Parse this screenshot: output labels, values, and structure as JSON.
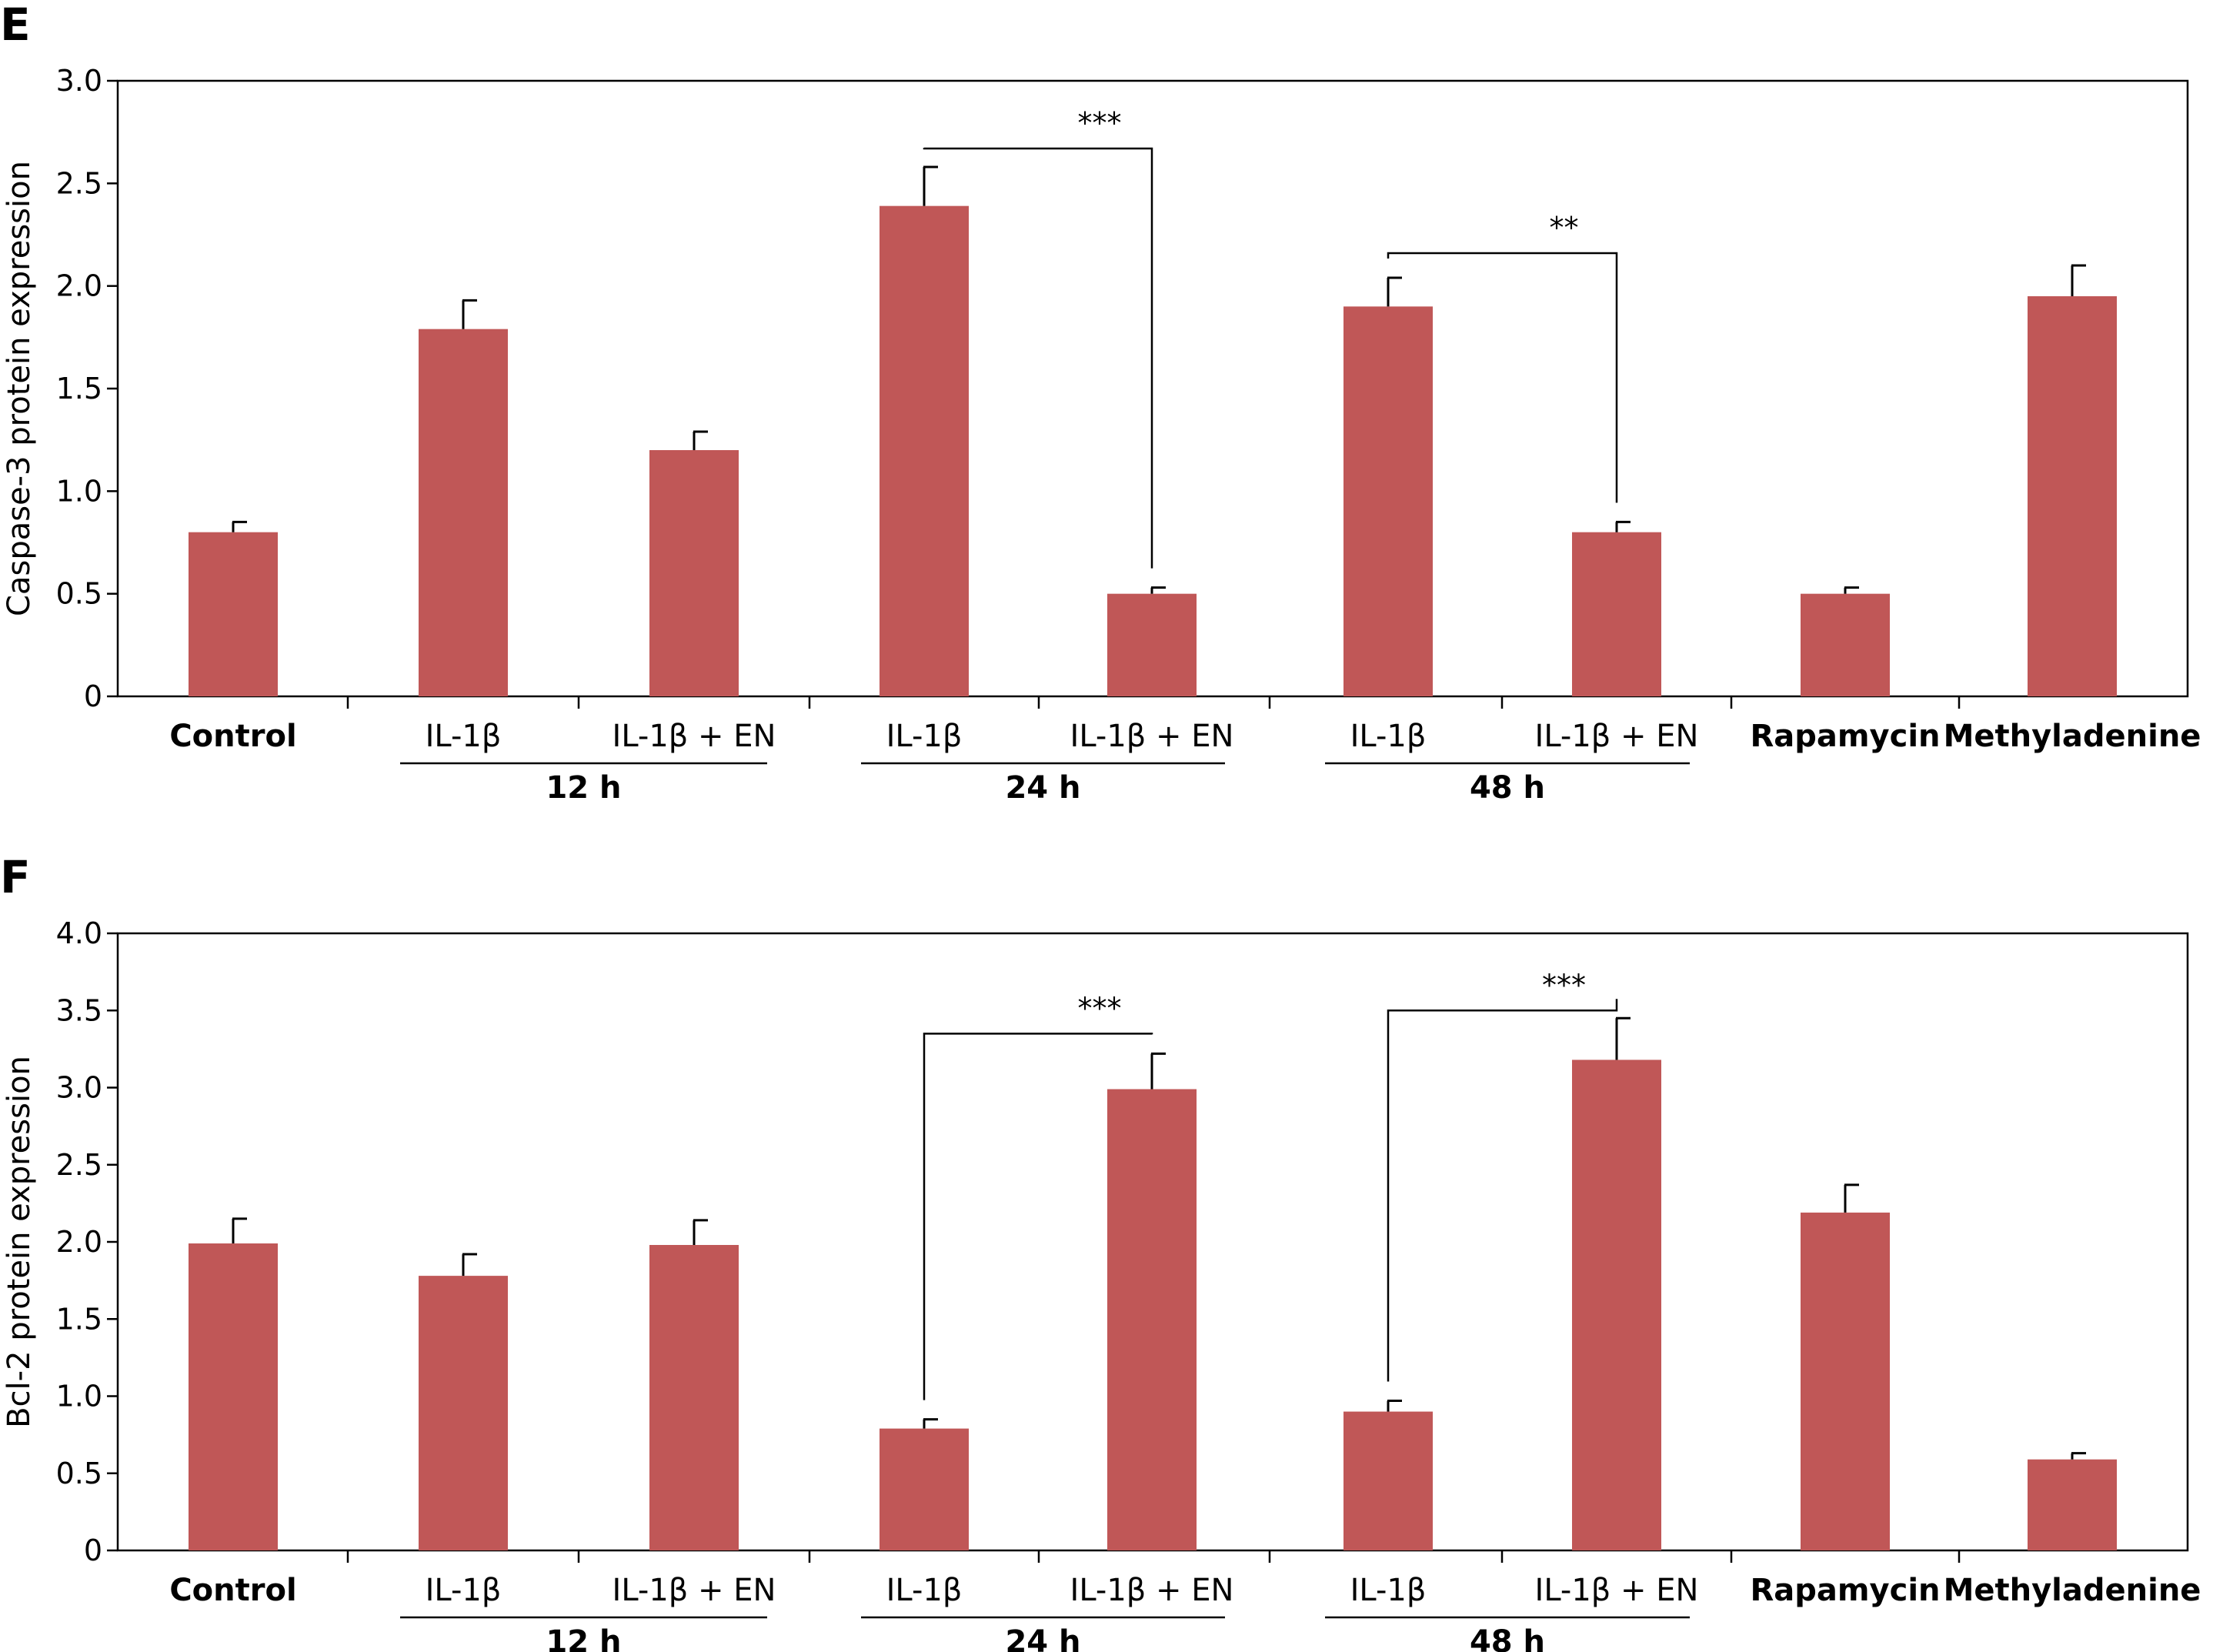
{
  "chart_data": [
    {
      "panel": "E",
      "type": "bar",
      "ylabel": "Caspase-3 protein expression",
      "ylim": [
        0,
        3.0
      ],
      "yticks": [
        "0",
        "0.5",
        "1.0",
        "1.5",
        "2.0",
        "2.5",
        "3.0"
      ],
      "categories": [
        "Control",
        "IL-1β",
        "IL-1β + EN",
        "IL-1β",
        "IL-1β + EN",
        "IL-1β",
        "IL-1β + EN",
        "Rapamycin",
        "Methyladenine"
      ],
      "bold_categories": [
        0,
        7,
        8
      ],
      "values": [
        0.8,
        1.79,
        1.2,
        2.39,
        0.5,
        1.9,
        0.8,
        0.5,
        1.95
      ],
      "errors": [
        0.05,
        0.14,
        0.09,
        0.19,
        0.03,
        0.14,
        0.05,
        0.03,
        0.15
      ],
      "groups": [
        {
          "label": "12 h",
          "from": 1,
          "to": 2
        },
        {
          "label": "24 h",
          "from": 3,
          "to": 4
        },
        {
          "label": "48 h",
          "from": 5,
          "to": 6
        }
      ],
      "significance": [
        {
          "from": 3,
          "to": 4,
          "label": "***",
          "level": 2.67
        },
        {
          "from": 5,
          "to": 6,
          "label": "**",
          "level": 2.16
        }
      ],
      "color": "#c05757"
    },
    {
      "panel": "F",
      "type": "bar",
      "ylabel": "Bcl-2 protein expression",
      "ylim": [
        0,
        4.0
      ],
      "yticks": [
        "0",
        "0.5",
        "1.0",
        "1.5",
        "2.0",
        "2.5",
        "3.0",
        "3.5",
        "4.0"
      ],
      "categories": [
        "Control",
        "IL-1β",
        "IL-1β + EN",
        "IL-1β",
        "IL-1β + EN",
        "IL-1β",
        "IL-1β + EN",
        "Rapamycin",
        "Methyladenine"
      ],
      "bold_categories": [
        0,
        7,
        8
      ],
      "values": [
        1.99,
        1.78,
        1.98,
        0.79,
        2.99,
        0.9,
        3.18,
        2.19,
        0.59
      ],
      "errors": [
        0.16,
        0.14,
        0.16,
        0.06,
        0.23,
        0.07,
        0.27,
        0.18,
        0.04
      ],
      "groups": [
        {
          "label": "12 h",
          "from": 1,
          "to": 2
        },
        {
          "label": "24 h",
          "from": 3,
          "to": 4
        },
        {
          "label": "48 h",
          "from": 5,
          "to": 6
        }
      ],
      "significance": [
        {
          "from": 3,
          "to": 4,
          "label": "***",
          "level": 3.35
        },
        {
          "from": 5,
          "to": 6,
          "label": "***",
          "level": 3.5
        }
      ],
      "color": "#c05757"
    }
  ]
}
